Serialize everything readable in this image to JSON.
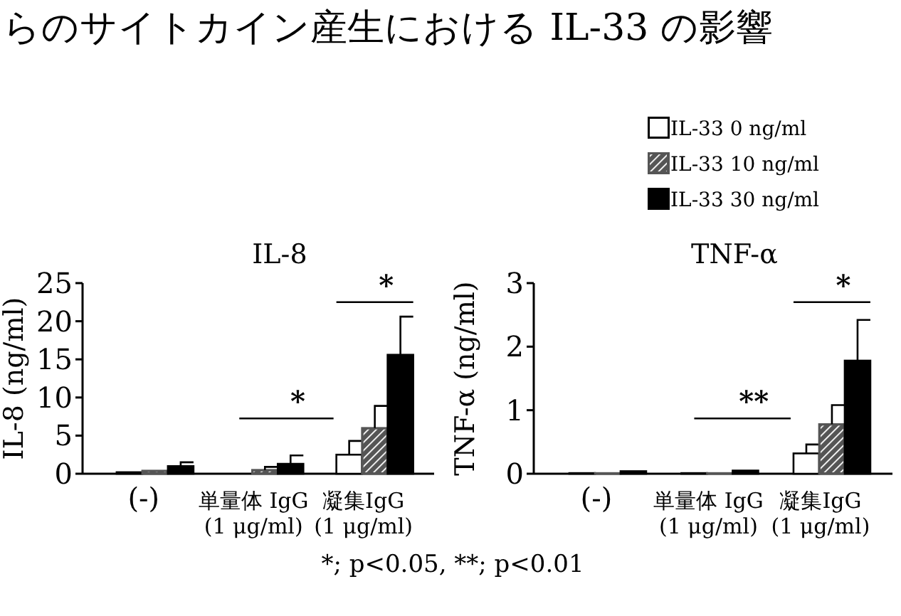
{
  "chart_data": [
    {
      "type": "other",
      "title": "らのサイトカイン産生における IL-33 の影響",
      "annotations": [
        "*; p<0.05, **; p<0.01"
      ]
    },
    {
      "type": "bar",
      "title": "IL-8",
      "ylabel": "IL-8 (ng/ml)",
      "categories": [
        "(-)",
        "単量体 IgG\n(1 μg/ml)",
        "凝集IgG\n(1 μg/ml)"
      ],
      "ylim": [
        0,
        25
      ],
      "yticks": [
        0,
        5,
        10,
        15,
        20,
        25
      ],
      "legend": "top right",
      "annotations": [
        "*",
        "*"
      ],
      "series": [
        {
          "name": "IL-33 0 ng/ml",
          "color": "#ffffff",
          "values": [
            0.2,
            null,
            2.5
          ],
          "errors": [
            null,
            null,
            [
              2.5,
              4.3
            ]
          ]
        },
        {
          "name": "IL-33 10 ng/ml",
          "color": "#555555",
          "values": [
            0.4,
            0.5,
            6.0
          ],
          "errors": [
            null,
            [
              0.5,
              0.9
            ],
            [
              6.0,
              8.9
            ]
          ]
        },
        {
          "name": "IL-33 30 ng/ml",
          "color": "#000000",
          "values": [
            1.0,
            1.3,
            15.6
          ],
          "errors": [
            [
              1.0,
              1.5
            ],
            [
              1.3,
              2.4
            ],
            [
              15.6,
              20.6
            ]
          ]
        }
      ]
    },
    {
      "type": "bar",
      "title": "TNF-α",
      "ylabel": "TNF-α (ng/ml)",
      "categories": [
        "(-)",
        "単量体 IgG\n(1 μg/ml)",
        "凝集IgG\n(1 μg/ml)"
      ],
      "ylim": [
        0,
        3
      ],
      "yticks": [
        0,
        1,
        2,
        3
      ],
      "annotations": [
        "**",
        "*"
      ],
      "series": [
        {
          "color": "#ffffff",
          "values": [
            0.01,
            0.01,
            0.32
          ],
          "errors": [
            null,
            null,
            [
              0.32,
              0.46
            ]
          ]
        },
        {
          "color": "#555555",
          "values": [
            0.01,
            0.01,
            0.78
          ],
          "errors": [
            null,
            null,
            [
              0.78,
              1.08
            ]
          ]
        },
        {
          "color": "#000000",
          "values": [
            0.04,
            0.05,
            1.78
          ],
          "errors": [
            null,
            null,
            [
              1.78,
              2.42
            ]
          ]
        }
      ]
    }
  ]
}
